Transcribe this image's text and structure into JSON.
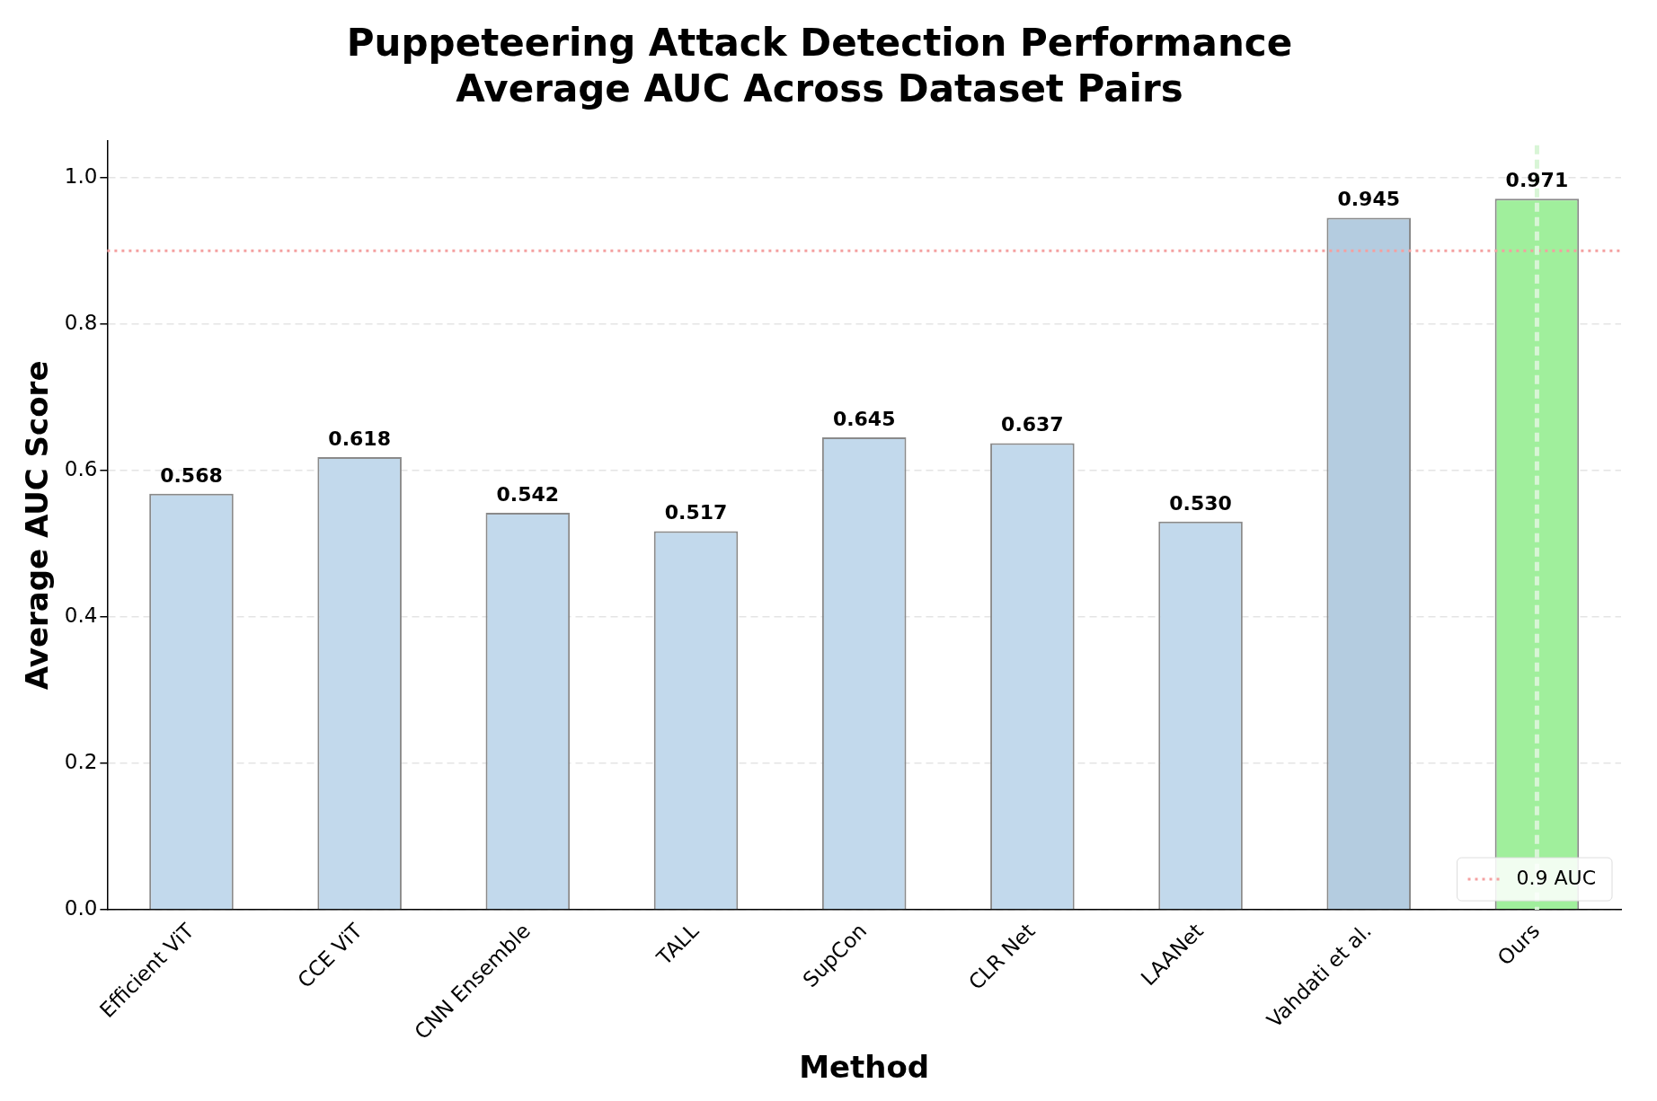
{
  "chart_data": {
    "type": "bar",
    "title": "Puppeteering Attack Detection Performance\nAverage AUC Across Dataset Pairs",
    "xlabel": "Method",
    "ylabel": "Average AUC Score",
    "categories": [
      "Efficient ViT",
      "CCE ViT",
      "CNN Ensemble",
      "TALL",
      "SupCon",
      "CLR Net",
      "LAANet",
      "Vahdati et al.",
      "Ours"
    ],
    "values": [
      0.568,
      0.618,
      0.542,
      0.517,
      0.645,
      0.637,
      0.53,
      0.945,
      0.971
    ],
    "colors": [
      "#c2d9ec",
      "#c2d9ec",
      "#c2d9ec",
      "#c2d9ec",
      "#c2d9ec",
      "#c2d9ec",
      "#c2d9ec",
      "#b4cce0",
      "#a0ef9c"
    ],
    "value_labels": [
      "0.568",
      "0.618",
      "0.542",
      "0.517",
      "0.645",
      "0.637",
      "0.530",
      "0.945",
      "0.971"
    ],
    "ylim": [
      0,
      1.05
    ],
    "yticks": [
      {
        "value": 0,
        "label": "0.0"
      },
      0.2,
      0.4,
      0.6,
      0.8,
      {
        "value": 1,
        "label": "1.0"
      }
    ],
    "grid": "y",
    "ref_lines": [
      {
        "axis": "y",
        "value": 0.9,
        "label": "0.9 AUC",
        "color": "#f4a0a0",
        "line_style": "dotted"
      },
      {
        "axis": "x",
        "value": "Ours",
        "color": "#d8f5d6",
        "line_style": "dashed"
      }
    ],
    "legend": "bottom right"
  }
}
